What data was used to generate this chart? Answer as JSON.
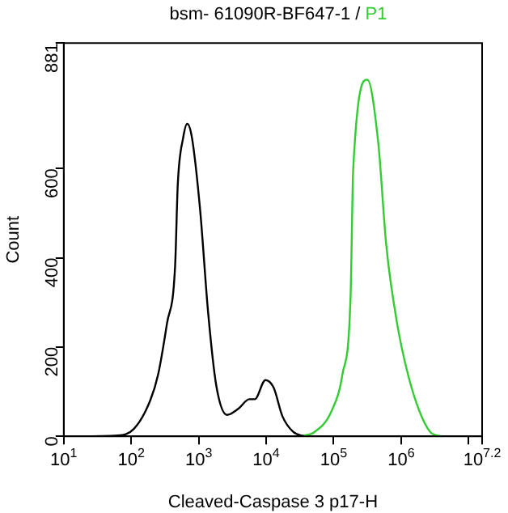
{
  "chart_data": {
    "type": "line",
    "xlabel": "Cleaved-Caspase 3 p17-H",
    "ylabel": "Count",
    "log": "x",
    "legend": "top",
    "grid": false,
    "marker": "none",
    "line_style": "solid",
    "xlim": [
      10,
      15848932
    ],
    "ylim": [
      0,
      881
    ],
    "xticks": [
      {
        "value": 10,
        "label": "10$^{1}$"
      },
      {
        "value": 100,
        "label": "10$^{2}$"
      },
      {
        "value": 1000,
        "label": "10$^{3}$"
      },
      {
        "value": 10000,
        "label": "10$^{4}$"
      },
      {
        "value": 100000,
        "label": "10$^{5}$"
      },
      {
        "value": 1000000,
        "label": "10$^{6}$"
      },
      {
        "value": 10000000,
        "label": null
      },
      {
        "value": 15848932,
        "label": "10$^{7.2}$"
      }
    ],
    "yticks": [
      0,
      200,
      400,
      600,
      881
    ],
    "series": [
      {
        "name": "bsm- 61090R-BF647-1 /",
        "color": "#000000",
        "x": [
          14,
          63,
          110,
          191,
          251,
          339,
          447,
          490,
          589,
          676,
          794,
          1050,
          1380,
          1820,
          2630,
          3890,
          5620,
          6760,
          9770,
          12900,
          17400,
          25100,
          36300
        ],
        "values": [
          0,
          2,
          17,
          80,
          139,
          253,
          381,
          565,
          669,
          700,
          669,
          507,
          277,
          114,
          48,
          62,
          83,
          83,
          126,
          109,
          45,
          10,
          0
        ]
      },
      {
        "name": "P1",
        "color": "#33cc33",
        "x": [
          30200,
          52500,
          93300,
          135000,
          178000,
          195000,
          316000,
          457000,
          603000,
          871000,
          1260000,
          1860000,
          2690000,
          3890000
        ],
        "values": [
          0,
          10,
          57,
          139,
          312,
          600,
          799,
          659,
          427,
          253,
          139,
          57,
          10,
          0
        ]
      }
    ]
  }
}
